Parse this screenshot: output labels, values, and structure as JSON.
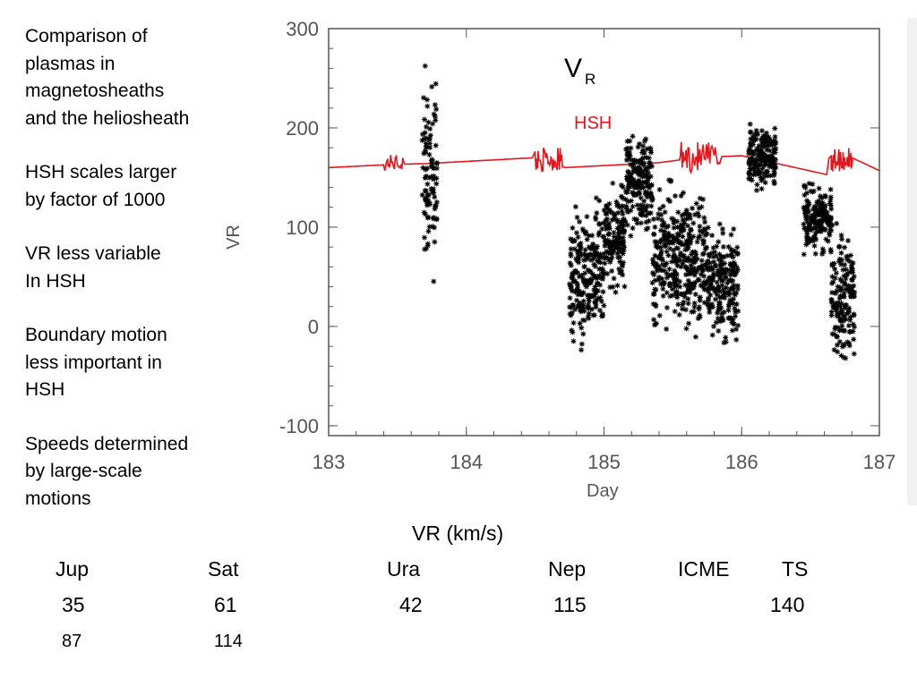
{
  "notes": [
    [
      "Comparison of",
      "plasmas in",
      "magnetosheaths",
      "and the heliosheath"
    ],
    [
      "HSH scales larger",
      "by factor of 1000"
    ],
    [
      "VR less variable",
      "In HSH"
    ],
    [
      "Boundary motion",
      "less important in",
      "HSH"
    ],
    [
      "Speeds determined",
      "by large-scale",
      "motions"
    ]
  ],
  "table": {
    "header": "VR (km/s)",
    "columns": [
      "Jup",
      "Sat",
      "Ura",
      "Nep",
      "ICME",
      "TS"
    ],
    "row1": [
      "35",
      "61",
      "42",
      "115",
      "",
      "140"
    ],
    "row2": [
      "87",
      "114",
      "",
      "",
      "",
      ""
    ]
  },
  "chart_data": {
    "type": "scatter",
    "title": "VR",
    "title_sub": "R",
    "title_main": "V",
    "xlabel": "Day",
    "ylabel": "VR",
    "xlim": [
      183,
      187
    ],
    "ylim": [
      -110,
      300
    ],
    "xticks": [
      183,
      184,
      185,
      186,
      187
    ],
    "yticks": [
      -100,
      0,
      100,
      200,
      300
    ],
    "hsh_label": "HSH",
    "colors": {
      "data": "#000000",
      "hsh": "#e8141b",
      "axes": "#555555"
    },
    "series": [
      {
        "name": "HSH",
        "kind": "line",
        "x": [
          183.0,
          183.43,
          183.7,
          184.5,
          184.72,
          185.4,
          185.68,
          186.0,
          186.65,
          186.8,
          187.0
        ],
        "y": [
          160,
          163,
          164,
          170,
          160,
          165,
          170,
          172,
          152,
          170,
          157
        ],
        "bursts": [
          {
            "x": [
              183.4,
              183.55
            ],
            "center": 165,
            "amp": 8
          },
          {
            "x": [
              184.5,
              184.7
            ],
            "center": 168,
            "amp": 12
          },
          {
            "x": [
              185.55,
              185.85
            ],
            "center": 170,
            "amp": 16
          },
          {
            "x": [
              186.62,
              186.8
            ],
            "center": 168,
            "amp": 12
          }
        ]
      },
      {
        "kind": "scatter",
        "clusters": [
          {
            "x": [
              183.68,
              183.79
            ],
            "y_center": 150,
            "y_spread": 100
          },
          {
            "x": [
              184.75,
              185.0
            ],
            "y_center": 55,
            "y_spread": 65
          },
          {
            "x": [
              185.0,
              185.15
            ],
            "y_center": 90,
            "y_spread": 50
          },
          {
            "x": [
              185.15,
              185.35
            ],
            "y_center": 145,
            "y_spread": 45
          },
          {
            "x": [
              185.35,
              185.75
            ],
            "y_center": 70,
            "y_spread": 65
          },
          {
            "x": [
              185.75,
              185.98
            ],
            "y_center": 45,
            "y_spread": 55
          },
          {
            "x": [
              186.05,
              186.25
            ],
            "y_center": 170,
            "y_spread": 30
          },
          {
            "x": [
              186.45,
              186.65
            ],
            "y_center": 110,
            "y_spread": 35
          },
          {
            "x": [
              186.65,
              186.82
            ],
            "y_center": 30,
            "y_spread": 60
          }
        ]
      }
    ]
  }
}
